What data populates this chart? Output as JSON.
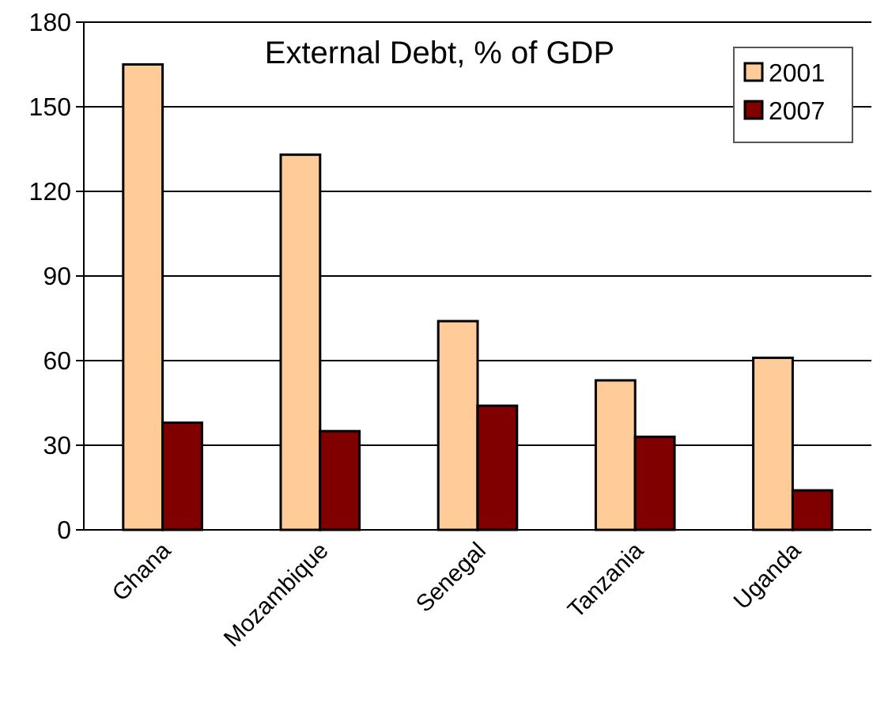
{
  "chart_data": {
    "type": "bar",
    "title": "External Debt, % of GDP",
    "categories": [
      "Ghana",
      "Mozambique",
      "Senegal",
      "Tanzania",
      "Uganda"
    ],
    "series": [
      {
        "name": "2001",
        "color": "#ffcc99",
        "values": [
          165,
          133,
          74,
          53,
          61
        ]
      },
      {
        "name": "2007",
        "color": "#800000",
        "values": [
          38,
          35,
          44,
          33,
          14
        ]
      }
    ],
    "ylim": [
      0,
      180
    ],
    "yticks": [
      0,
      30,
      60,
      90,
      120,
      150,
      180
    ],
    "grid": "y",
    "legend": "top right"
  }
}
